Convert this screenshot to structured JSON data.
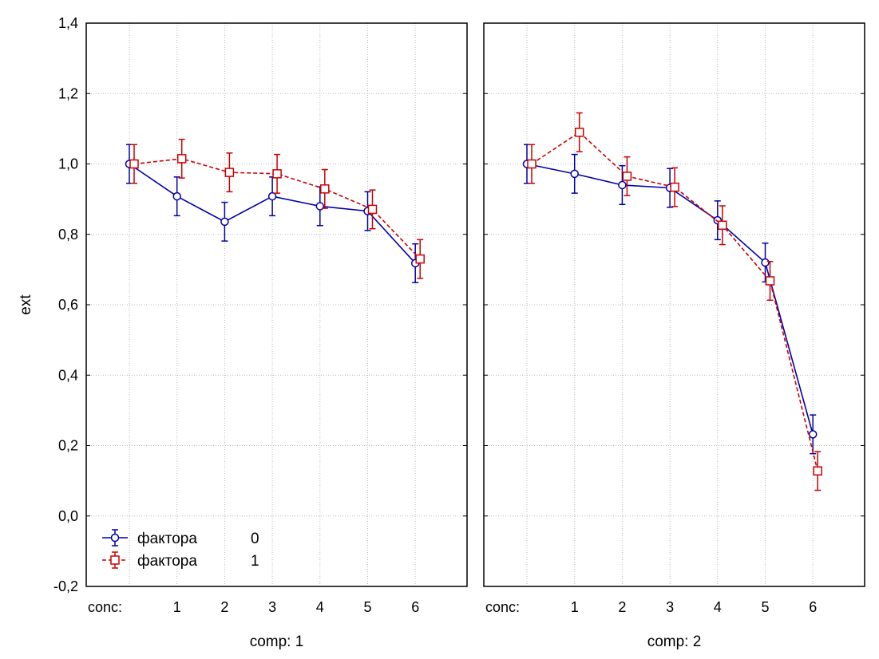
{
  "chart_data": {
    "type": "line",
    "ylabel": "ext",
    "ylim": [
      -0.2,
      1.4
    ],
    "yticks": [
      "-0,2",
      "0,0",
      "0,2",
      "0,4",
      "0,6",
      "0,8",
      "1,0",
      "1,2",
      "1,4"
    ],
    "ytick_values": [
      -0.2,
      0.0,
      0.2,
      0.4,
      0.6,
      0.8,
      1.0,
      1.2,
      1.4
    ],
    "x_prefix": "conc:",
    "categories": [
      "",
      "1",
      "2",
      "3",
      "4",
      "5",
      "6"
    ],
    "grid": true,
    "legend": {
      "position": "bottom-left",
      "entries": [
        {
          "label": "фактора",
          "value": "0"
        },
        {
          "label": "фактора",
          "value": "1"
        }
      ]
    },
    "panels": [
      {
        "title": "comp: 1",
        "series": [
          {
            "name": "фактора 0",
            "color": "#0000aa",
            "marker": "circle",
            "dash": false,
            "values": [
              1.0,
              0.908,
              0.836,
              0.908,
              0.88,
              0.866,
              0.718
            ],
            "err": 0.055
          },
          {
            "name": "фактора 1",
            "color": "#cc0000",
            "marker": "square",
            "dash": true,
            "values": [
              1.0,
              1.015,
              0.976,
              0.972,
              0.929,
              0.871,
              0.73
            ],
            "err": 0.055
          }
        ]
      },
      {
        "title": "comp: 2",
        "series": [
          {
            "name": "фактора 0",
            "color": "#0000aa",
            "marker": "circle",
            "dash": false,
            "values": [
              1.0,
              0.972,
              0.94,
              0.932,
              0.84,
              0.72,
              0.232
            ],
            "err": 0.055
          },
          {
            "name": "фактора 1",
            "color": "#cc0000",
            "marker": "square",
            "dash": true,
            "values": [
              1.0,
              1.09,
              0.965,
              0.934,
              0.826,
              0.668,
              0.128
            ],
            "err": 0.055
          }
        ]
      }
    ]
  }
}
